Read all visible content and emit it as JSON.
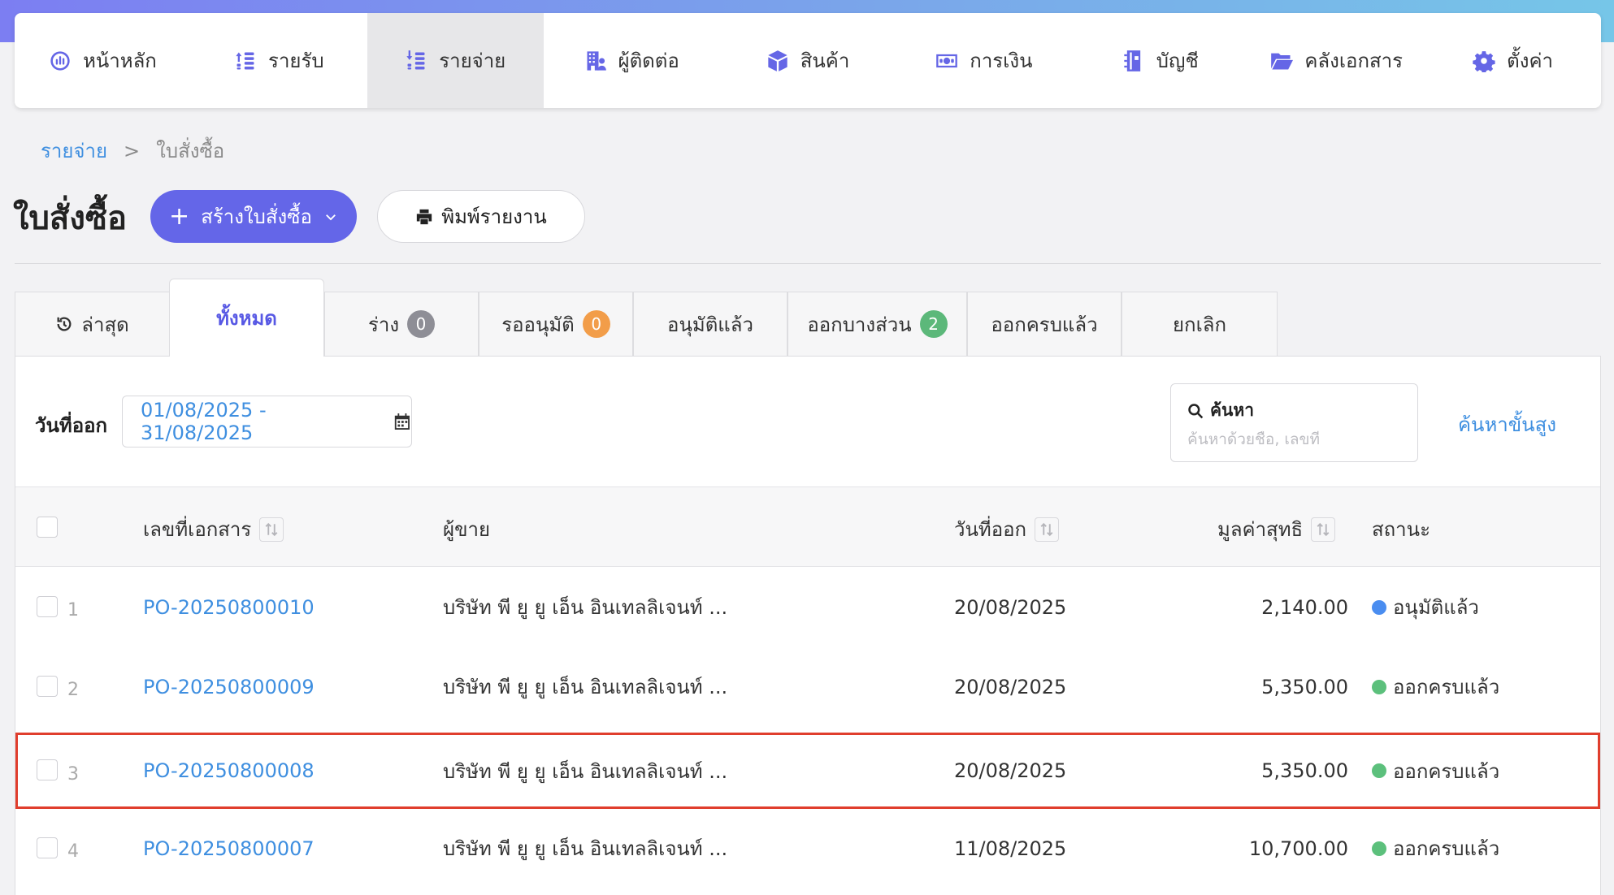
{
  "colors": {
    "primary": "#6466e8",
    "link": "#3f8fe0",
    "status_approved": "#4a8df0",
    "status_completed": "#5cc07c",
    "badge_gray": "#8e8e96",
    "badge_orange": "#f29d49",
    "badge_green": "#5cb87a",
    "highlight_border": "#e03e2d"
  },
  "nav": [
    {
      "label": "หน้าหลัก",
      "icon": "dashboard-icon"
    },
    {
      "label": "รายรับ",
      "icon": "income-icon"
    },
    {
      "label": "รายจ่าย",
      "icon": "expense-icon"
    },
    {
      "label": "ผู้ติดต่อ",
      "icon": "contacts-icon"
    },
    {
      "label": "สินค้า",
      "icon": "product-box-icon"
    },
    {
      "label": "การเงิน",
      "icon": "money-icon"
    },
    {
      "label": "บัญชี",
      "icon": "accounting-book-icon"
    },
    {
      "label": "คลังเอกสาร",
      "icon": "folder-icon"
    },
    {
      "label": "ตั้งค่า",
      "icon": "gear-icon"
    }
  ],
  "breadcrumb": {
    "parent": "รายจ่าย",
    "separator": ">",
    "current": "ใบสั่งซื้อ"
  },
  "page": {
    "title": "ใบสั่งซื้อ",
    "create_label": "สร้างใบสั่งซื้อ",
    "print_label": "พิมพ์รายงาน"
  },
  "tabs": [
    {
      "label": "ล่าสุด",
      "icon": "history-icon"
    },
    {
      "label": "ทั้งหมด"
    },
    {
      "label": "ร่าง",
      "badge": "0"
    },
    {
      "label": "รออนุมัติ",
      "badge": "0"
    },
    {
      "label": "อนุมัติแล้ว"
    },
    {
      "label": "ออกบางส่วน",
      "badge": "2"
    },
    {
      "label": "ออกครบแล้ว"
    },
    {
      "label": "ยกเลิก"
    }
  ],
  "filters": {
    "date_label": "วันที่ออก",
    "date_range": "01/08/2025 - 31/08/2025",
    "search_label": "ค้นหา",
    "search_placeholder": "ค้นหาด้วยชื่อ, เลขที่",
    "advanced_search": "ค้นหาขั้นสูง"
  },
  "table": {
    "columns": {
      "doc_no": "เลขที่เอกสาร",
      "vendor": "ผู้ขาย",
      "date": "วันที่ออก",
      "amount": "มูลค่าสุทธิ",
      "status": "สถานะ"
    },
    "rows": [
      {
        "num": "1",
        "doc_no": "PO-20250800010",
        "vendor": "บริษัท พี ยู ยู เอ็น อินเทลลิเจนท์ ...",
        "date": "20/08/2025",
        "amount": "2,140.00",
        "status": "อนุมัติแล้ว"
      },
      {
        "num": "2",
        "doc_no": "PO-20250800009",
        "vendor": "บริษัท พี ยู ยู เอ็น อินเทลลิเจนท์ ...",
        "date": "20/08/2025",
        "amount": "5,350.00",
        "status": "ออกครบแล้ว"
      },
      {
        "num": "3",
        "doc_no": "PO-20250800008",
        "vendor": "บริษัท พี ยู ยู เอ็น อินเทลลิเจนท์ ...",
        "date": "20/08/2025",
        "amount": "5,350.00",
        "status": "ออกครบแล้ว"
      },
      {
        "num": "4",
        "doc_no": "PO-20250800007",
        "vendor": "บริษัท พี ยู ยู เอ็น อินเทลลิเจนท์ ...",
        "date": "11/08/2025",
        "amount": "10,700.00",
        "status": "ออกครบแล้ว"
      }
    ]
  }
}
